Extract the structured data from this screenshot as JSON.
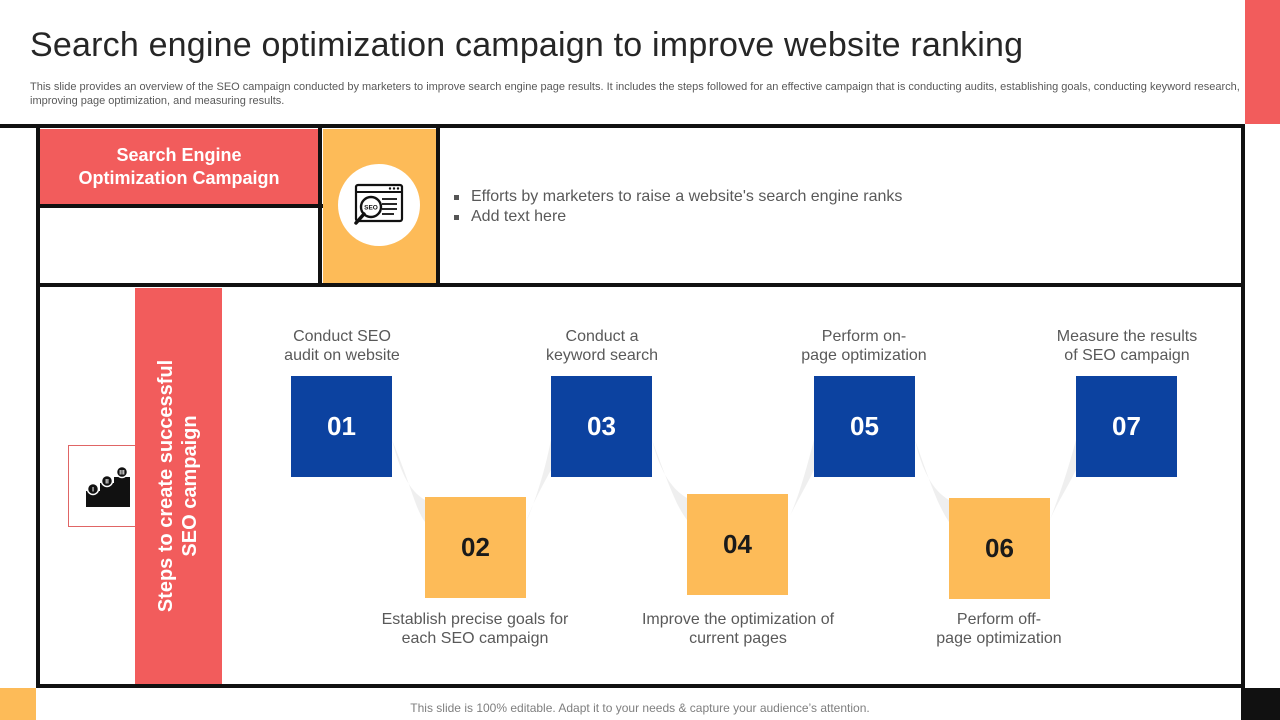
{
  "title": "Search engine optimization campaign to improve website ranking",
  "subtitle": "This slide provides an overview of the SEO campaign conducted by marketers to improve search engine page results. It includes the steps followed for an effective campaign that is conducting audits, establishing goals, conducting keyword research, improving page optimization, and measuring results.",
  "campaign": {
    "heading_line1": "Search Engine",
    "heading_line2": "Optimization Campaign",
    "icon": "seo-magnifier-icon",
    "bullets": [
      "Efforts by marketers to raise a website's search engine ranks",
      "Add text here"
    ]
  },
  "steps": {
    "heading_line1": "Steps to create successful",
    "heading_line2": "SEO campaign",
    "icon": "podium-steps-icon",
    "items": [
      {
        "number": "01",
        "line1": "Conduct SEO",
        "line2": "audit on website"
      },
      {
        "number": "02",
        "line1": "Establish precise goals for",
        "line2": "each SEO campaign"
      },
      {
        "number": "03",
        "line1": "Conduct a",
        "line2": "keyword search"
      },
      {
        "number": "04",
        "line1": "Improve  the optimization of",
        "line2": "current pages"
      },
      {
        "number": "05",
        "line1": "Perform on-",
        "line2": "page optimization"
      },
      {
        "number": "06",
        "line1": "Perform off-",
        "line2": "page optimization"
      },
      {
        "number": "07",
        "line1": "Measure the results",
        "line2": "of SEO campaign"
      }
    ]
  },
  "footer": "This slide is 100% editable. Adapt it to your needs & capture your audience’s attention.",
  "colors": {
    "red": "#f25c5c",
    "yellow": "#fdbb58",
    "blue": "#0c42a0",
    "dark": "#111111"
  }
}
